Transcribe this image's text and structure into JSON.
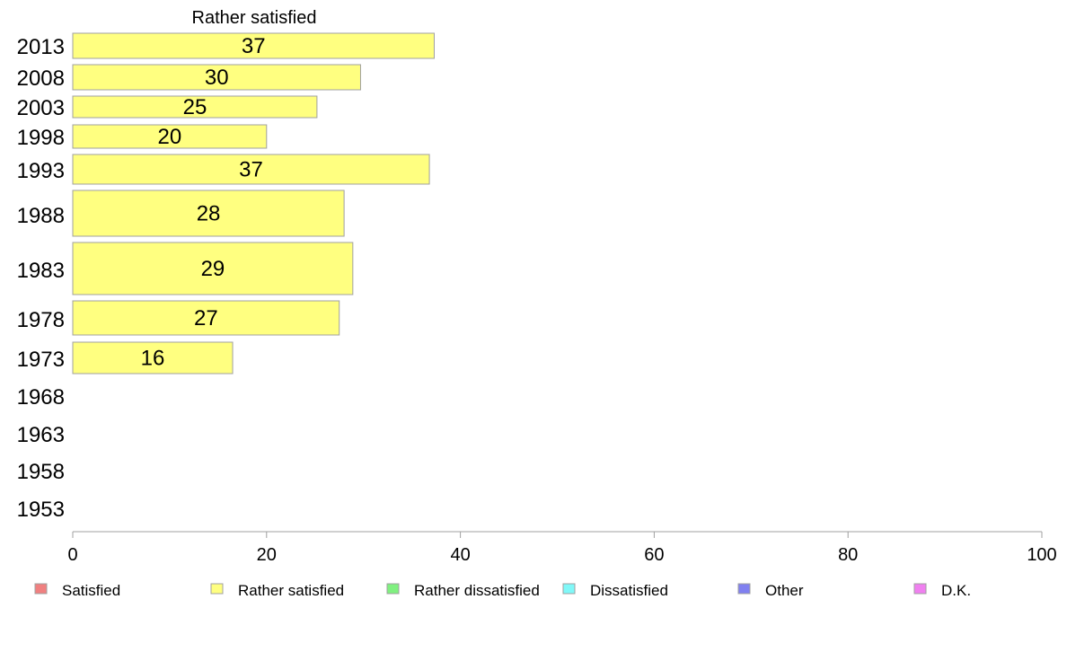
{
  "chart_data": {
    "type": "bar",
    "orientation": "horizontal",
    "title": "Rather satisfied",
    "categories": [
      "2013",
      "2008",
      "2003",
      "1998",
      "1993",
      "1988",
      "1983",
      "1978",
      "1973",
      "1968",
      "1963",
      "1958",
      "1953"
    ],
    "series": [
      {
        "name": "Rather satisfied",
        "color": "#ffff80",
        "values": [
          37.3,
          29.7,
          25.2,
          20.0,
          36.8,
          28.0,
          28.9,
          27.5,
          16.5,
          null,
          null,
          null,
          null
        ],
        "labels": [
          "37",
          "30",
          "25",
          "20",
          "37",
          "28",
          "29",
          "27",
          "16",
          "",
          "",
          "",
          ""
        ]
      }
    ],
    "xlim": [
      0,
      100
    ],
    "xticks": [
      0,
      20,
      40,
      60,
      80,
      100
    ],
    "grid": false,
    "legend_position": "bottom",
    "legend": [
      {
        "label": "Satisfied",
        "color": "#f08080"
      },
      {
        "label": "Rather satisfied",
        "color": "#ffff80"
      },
      {
        "label": "Rather dissatisfied",
        "color": "#80f080"
      },
      {
        "label": "Dissatisfied",
        "color": "#80f8f8"
      },
      {
        "label": "Other",
        "color": "#8080f0"
      },
      {
        "label": "D.K.",
        "color": "#f080f0"
      }
    ]
  }
}
